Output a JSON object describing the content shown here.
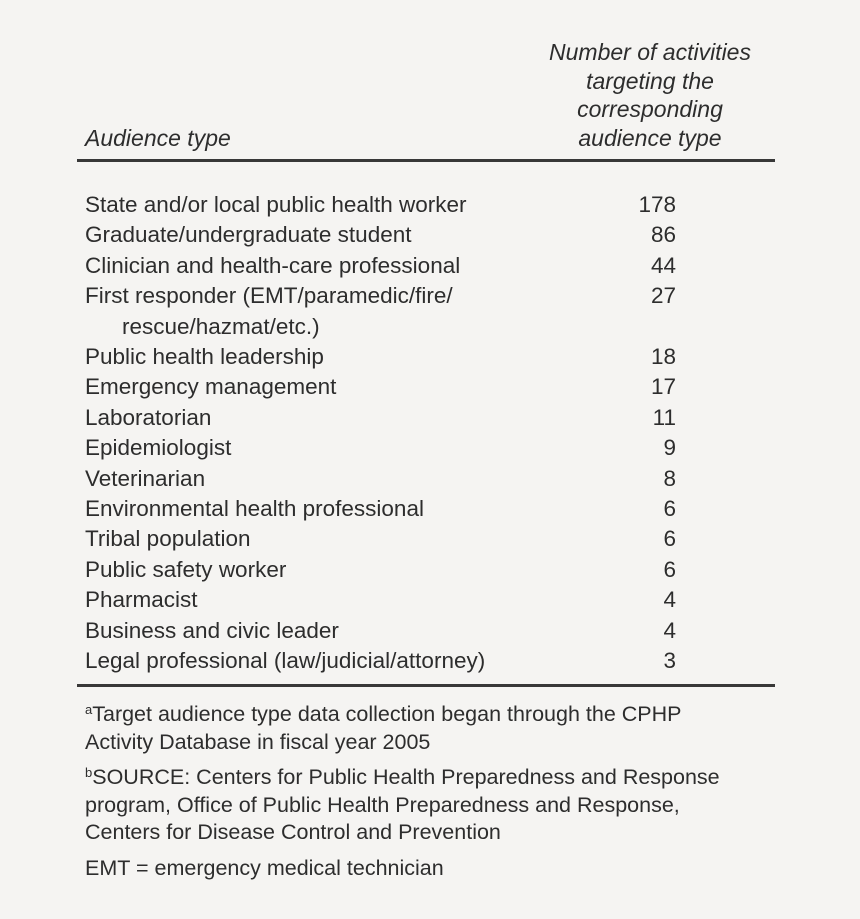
{
  "colors": {
    "background": "#f5f4f2",
    "text": "#2d2d2d",
    "rule": "#383838"
  },
  "table": {
    "col1_header": "Audience type",
    "col2_header": "Number of activities\ntargeting the\ncorresponding\naudience type",
    "rows": [
      {
        "label": "State and/or local public health worker",
        "value": "178"
      },
      {
        "label": "Graduate/undergraduate student",
        "value": "86"
      },
      {
        "label": "Clinician and health-care professional",
        "value": "44"
      },
      {
        "label": "First responder (EMT/paramedic/fire/",
        "label2": "rescue/hazmat/etc.)",
        "value": "27"
      },
      {
        "label": "Public health leadership",
        "value": "18"
      },
      {
        "label": "Emergency management",
        "value": "17"
      },
      {
        "label": "Laboratorian",
        "value": "11"
      },
      {
        "label": "Epidemiologist",
        "value": "9"
      },
      {
        "label": "Veterinarian",
        "value": "8"
      },
      {
        "label": "Environmental health professional",
        "value": "6"
      },
      {
        "label": "Tribal population",
        "value": "6"
      },
      {
        "label": "Public safety worker",
        "value": "6"
      },
      {
        "label": "Pharmacist",
        "value": "4"
      },
      {
        "label": "Business and civic leader",
        "value": "4"
      },
      {
        "label": "Legal professional (law/judicial/attorney)",
        "value": "3"
      }
    ]
  },
  "footnotes": [
    {
      "marker": "a",
      "text": "Target audience type data collection began through the CPHP\nActivity Database in fiscal year 2005"
    },
    {
      "marker": "b",
      "text": "SOURCE: Centers for Public Health Preparedness and Response\nprogram, Office of Public Health Preparedness and Response,\nCenters for Disease Control and Prevention"
    },
    {
      "marker": "",
      "text": "EMT = emergency medical technician"
    }
  ]
}
